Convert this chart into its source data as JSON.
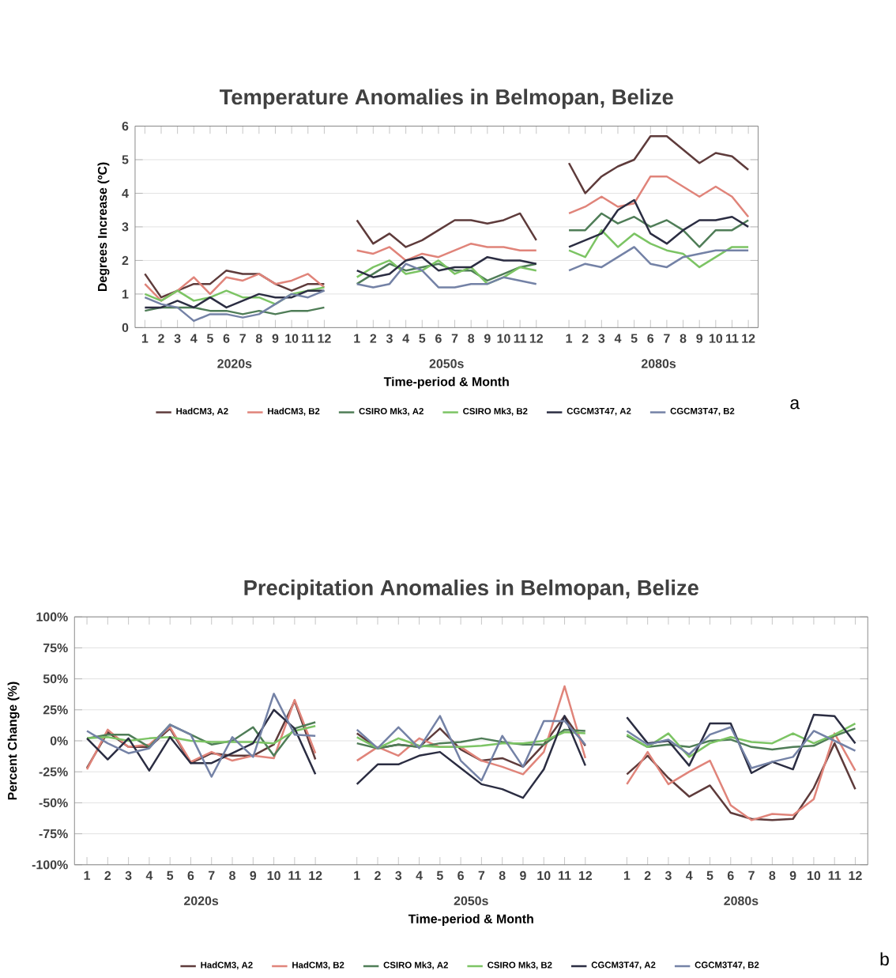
{
  "chart_data": [
    {
      "type": "line",
      "title": "Temperature  Anomalies in Belmopan, Belize",
      "xlabel": "Time-period & Month",
      "ylabel": "Degrees Increase (ºC)",
      "categories": [
        "1",
        "2",
        "3",
        "4",
        "5",
        "6",
        "7",
        "8",
        "9",
        "10",
        "11",
        "12",
        null,
        "1",
        "2",
        "3",
        "4",
        "5",
        "6",
        "7",
        "8",
        "9",
        "10",
        "11",
        "12",
        null,
        "1",
        "2",
        "3",
        "4",
        "5",
        "6",
        "7",
        "8",
        "9",
        "10",
        "11",
        "12"
      ],
      "ylim": [
        0,
        6
      ],
      "yticks": [
        0,
        1,
        2,
        3,
        4,
        5,
        6
      ],
      "grid": "y",
      "legend": "bottom",
      "annotations": [
        "2020s",
        "2050s",
        "2080s",
        "a"
      ],
      "series": [
        {
          "name": "HadCM3, A2",
          "color": "#5e3b3b",
          "values": [
            1.6,
            0.9,
            1.1,
            1.3,
            1.3,
            1.7,
            1.6,
            1.6,
            1.3,
            1.1,
            1.3,
            1.3,
            null,
            3.2,
            2.5,
            2.8,
            2.4,
            2.6,
            2.9,
            3.2,
            3.2,
            3.1,
            3.2,
            3.4,
            2.6,
            null,
            4.9,
            4.0,
            4.5,
            4.8,
            5.0,
            5.7,
            5.7,
            5.3,
            4.9,
            5.2,
            5.1,
            4.7
          ]
        },
        {
          "name": "HadCM3, B2",
          "color": "#e0847a",
          "values": [
            1.3,
            0.8,
            1.1,
            1.5,
            1.0,
            1.5,
            1.4,
            1.6,
            1.3,
            1.4,
            1.6,
            1.2,
            null,
            2.3,
            2.2,
            2.4,
            2.0,
            2.2,
            2.1,
            2.3,
            2.5,
            2.4,
            2.4,
            2.3,
            2.3,
            null,
            3.4,
            3.6,
            3.9,
            3.6,
            3.7,
            4.5,
            4.5,
            4.2,
            3.9,
            4.2,
            3.9,
            3.3
          ]
        },
        {
          "name": "CSIRO Mk3, A2",
          "color": "#4f7d57",
          "values": [
            0.5,
            0.6,
            0.6,
            0.6,
            0.5,
            0.5,
            0.4,
            0.5,
            0.4,
            0.5,
            0.5,
            0.6,
            null,
            1.3,
            1.6,
            1.9,
            1.7,
            1.8,
            1.9,
            1.7,
            1.7,
            1.4,
            1.6,
            1.8,
            1.9,
            null,
            2.9,
            2.9,
            3.4,
            3.1,
            3.3,
            3.0,
            3.2,
            2.9,
            2.4,
            2.9,
            2.9,
            3.2
          ]
        },
        {
          "name": "CSIRO Mk3, B2",
          "color": "#7cc464",
          "values": [
            1.0,
            0.8,
            1.1,
            0.8,
            0.9,
            1.1,
            0.9,
            0.9,
            0.7,
            1.0,
            1.1,
            1.2,
            null,
            1.5,
            1.8,
            2.0,
            1.6,
            1.7,
            2.0,
            1.6,
            1.8,
            1.3,
            1.5,
            1.8,
            1.7,
            null,
            2.3,
            2.1,
            2.9,
            2.4,
            2.8,
            2.5,
            2.3,
            2.2,
            1.8,
            2.1,
            2.4,
            2.4
          ]
        },
        {
          "name": "CGCM3T47, A2",
          "color": "#2b2d42",
          "values": [
            0.6,
            0.6,
            0.8,
            0.6,
            0.9,
            0.6,
            0.8,
            1.0,
            0.9,
            0.9,
            1.1,
            1.1,
            null,
            1.7,
            1.5,
            1.6,
            2.0,
            2.1,
            1.7,
            1.8,
            1.8,
            2.1,
            2.0,
            2.0,
            1.9,
            null,
            2.4,
            2.6,
            2.8,
            3.5,
            3.8,
            2.8,
            2.5,
            2.9,
            3.2,
            3.2,
            3.3,
            3.0
          ]
        },
        {
          "name": "CGCM3T47, B2",
          "color": "#7482a6",
          "values": [
            0.9,
            0.7,
            0.6,
            0.2,
            0.4,
            0.4,
            0.3,
            0.4,
            0.7,
            1.0,
            0.9,
            1.1,
            null,
            1.3,
            1.2,
            1.3,
            1.9,
            1.7,
            1.2,
            1.2,
            1.3,
            1.3,
            1.5,
            1.4,
            1.3,
            null,
            1.7,
            1.9,
            1.8,
            2.1,
            2.4,
            1.9,
            1.8,
            2.1,
            2.2,
            2.3,
            2.3,
            2.3
          ]
        }
      ]
    },
    {
      "type": "line",
      "title": "Precipitation Anomalies in Belmopan, Belize",
      "xlabel": "Time-period & Month",
      "ylabel": "Percent Change (%)",
      "categories": [
        "1",
        "2",
        "3",
        "4",
        "5",
        "6",
        "7",
        "8",
        "9",
        "10",
        "11",
        "12",
        null,
        "1",
        "2",
        "3",
        "4",
        "5",
        "6",
        "7",
        "8",
        "9",
        "10",
        "11",
        "12",
        null,
        "1",
        "2",
        "3",
        "4",
        "5",
        "6",
        "7",
        "8",
        "9",
        "10",
        "11",
        "12"
      ],
      "ylim": [
        -100,
        100
      ],
      "yticks": [
        {
          "value": -100,
          "label": "-100%"
        },
        {
          "value": -75,
          "label": "-75%"
        },
        {
          "value": -50,
          "label": "-50%"
        },
        {
          "value": -25,
          "label": "-25%"
        },
        {
          "value": 0,
          "label": "0%"
        },
        {
          "value": 25,
          "label": "25%"
        },
        {
          "value": 50,
          "label": "50%"
        },
        {
          "value": 75,
          "label": "75%"
        },
        {
          "value": 100,
          "label": "100%"
        }
      ],
      "grid": "y",
      "legend": "bottom",
      "annotations": [
        "2020s",
        "2050s",
        "2080s",
        "b"
      ],
      "series": [
        {
          "name": "HadCM3, A2",
          "color": "#5e3b3b",
          "values": [
            -22,
            7,
            -5,
            -5,
            10,
            -18,
            -10,
            -12,
            -12,
            -3,
            32,
            -15,
            null,
            6,
            -6,
            -3,
            -5,
            10,
            -7,
            -16,
            -14,
            -21,
            -3,
            20,
            -4,
            null,
            -27,
            -12,
            -30,
            -45,
            -36,
            -58,
            -63,
            -64,
            -63,
            -38,
            -2,
            -39
          ]
        },
        {
          "name": "HadCM3, B2",
          "color": "#e0847a",
          "values": [
            -23,
            9,
            -5,
            -3,
            11,
            -17,
            -9,
            -16,
            -12,
            -14,
            33,
            -10,
            null,
            -16,
            -5,
            -12,
            2,
            -5,
            -5,
            -16,
            -21,
            -27,
            -9,
            44,
            -14,
            null,
            -35,
            -9,
            -35,
            -25,
            -16,
            -52,
            -64,
            -59,
            -60,
            -47,
            6,
            -24
          ]
        },
        {
          "name": "CSIRO Mk3, A2",
          "color": "#4f7d57",
          "values": [
            2,
            5,
            5,
            -5,
            13,
            5,
            -3,
            0,
            11,
            -12,
            10,
            15,
            null,
            -2,
            -6,
            -3,
            -5,
            -2,
            -1,
            2,
            -1,
            -3,
            -3,
            9,
            8,
            null,
            4,
            -5,
            -3,
            -5,
            0,
            1,
            -5,
            -7,
            -5,
            -4,
            4,
            10
          ]
        },
        {
          "name": "CSIRO Mk3, B2",
          "color": "#7cc464",
          "values": [
            2,
            3,
            0,
            2,
            3,
            0,
            -1,
            -1,
            -1,
            -2,
            8,
            12,
            null,
            3,
            -6,
            2,
            -4,
            -5,
            -5,
            -4,
            -2,
            -2,
            0,
            7,
            6,
            null,
            5,
            -5,
            6,
            -13,
            -2,
            3,
            -1,
            -2,
            6,
            -2,
            5,
            14
          ]
        },
        {
          "name": "CGCM3T47, A2",
          "color": "#2b2d42",
          "values": [
            2,
            -15,
            2,
            -24,
            3,
            -18,
            -18,
            -10,
            -2,
            25,
            10,
            -27,
            null,
            -35,
            -19,
            -19,
            -12,
            -9,
            -22,
            -35,
            -39,
            -46,
            -23,
            20,
            -20,
            null,
            19,
            -2,
            0,
            -20,
            14,
            14,
            -26,
            -17,
            -23,
            21,
            20,
            -2
          ]
        },
        {
          "name": "CGCM3T47, B2",
          "color": "#7482a6",
          "values": [
            8,
            -2,
            -10,
            -6,
            13,
            5,
            -29,
            3,
            -13,
            38,
            5,
            4,
            null,
            9,
            -6,
            11,
            -6,
            20,
            -16,
            -32,
            4,
            -21,
            16,
            16,
            -3,
            null,
            8,
            -3,
            1,
            -11,
            5,
            11,
            -22,
            -17,
            -13,
            8,
            0,
            -8
          ]
        }
      ]
    }
  ]
}
